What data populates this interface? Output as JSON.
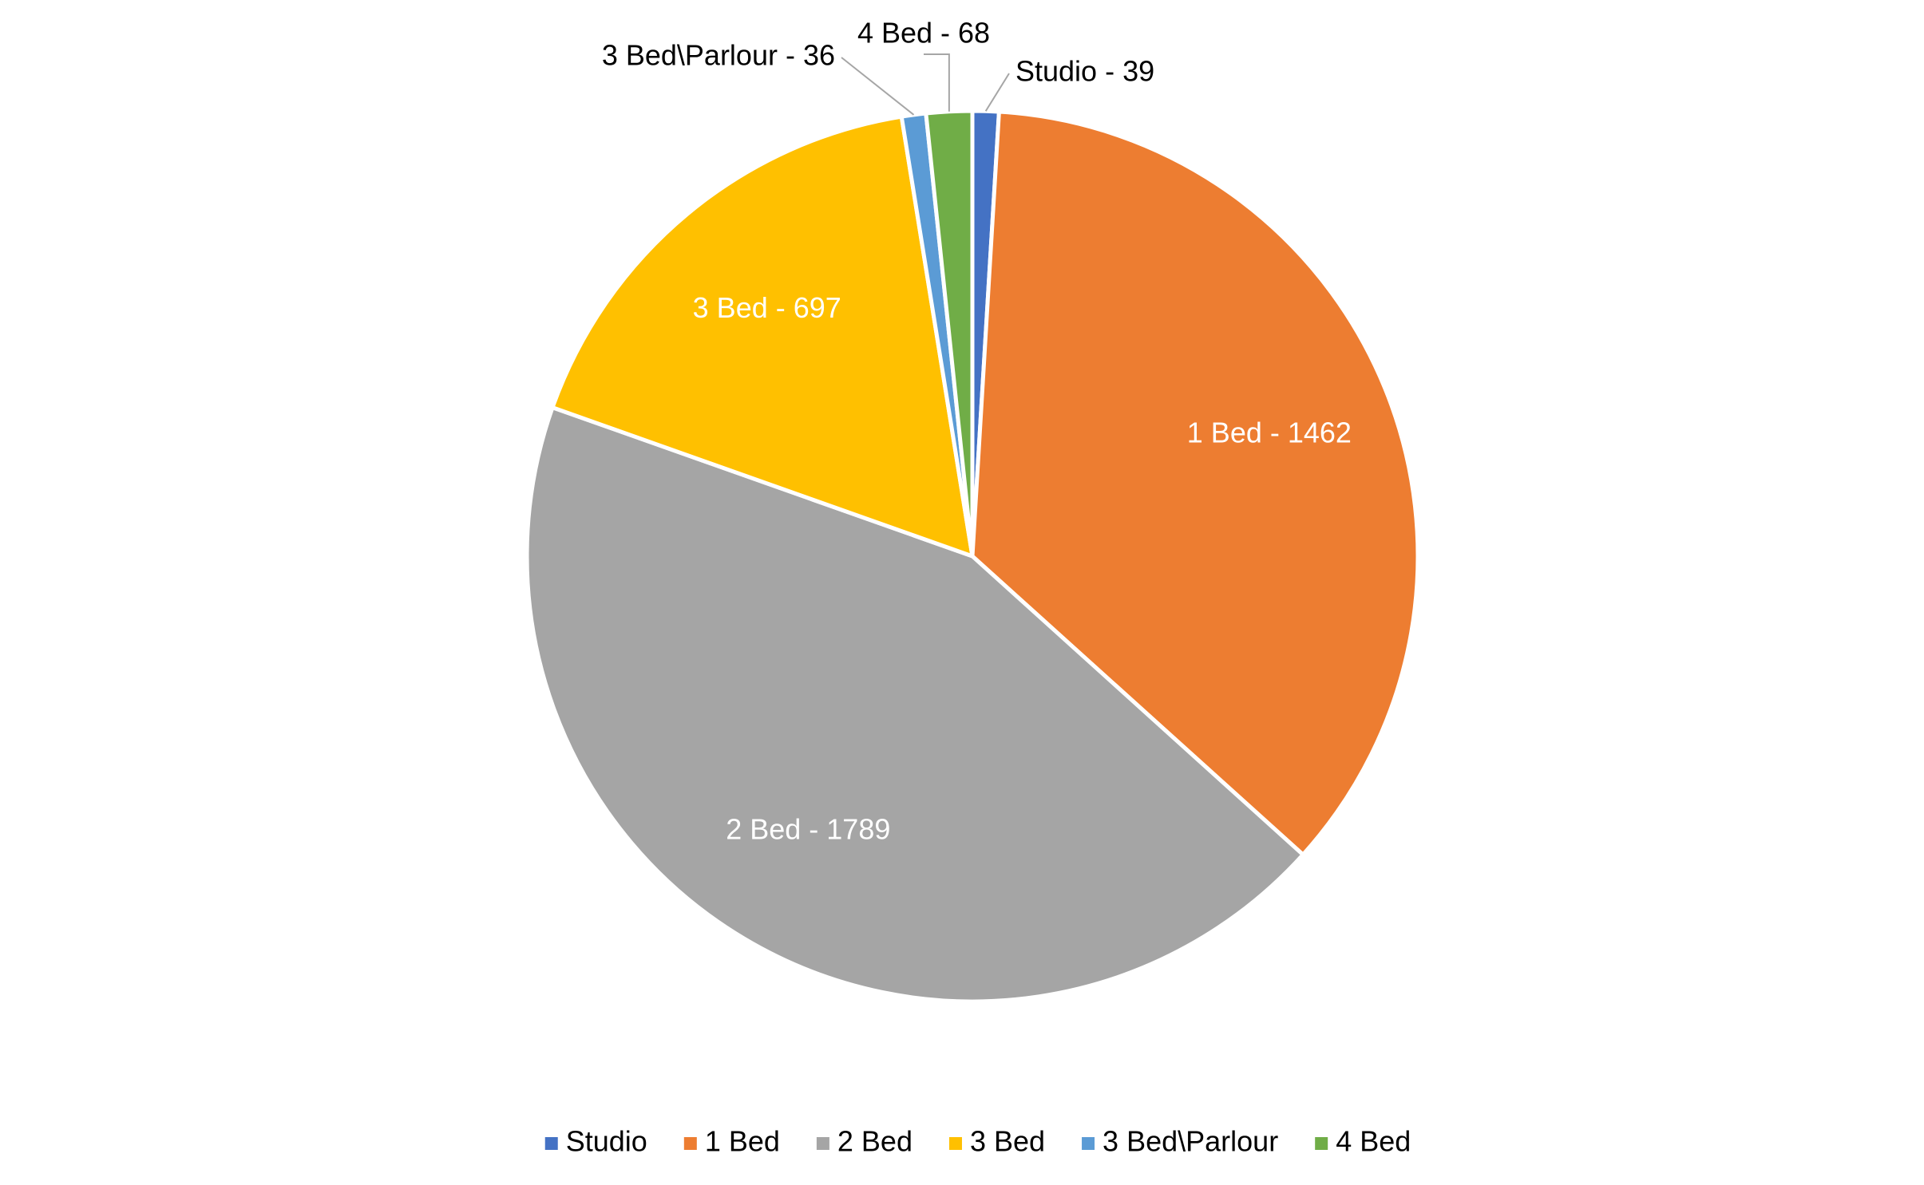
{
  "chart_data": {
    "type": "pie",
    "categories": [
      "Studio",
      "1 Bed",
      "2 Bed",
      "3 Bed",
      "3 Bed\\Parlour",
      "4 Bed"
    ],
    "values": [
      39,
      1462,
      1789,
      697,
      36,
      68
    ],
    "value_labels": [
      "Studio - 39",
      "1 Bed - 1462",
      "2 Bed - 1789",
      "3 Bed - 697",
      "3 Bed\\Parlour - 36",
      "4 Bed - 68"
    ],
    "colors": [
      "#4472c4",
      "#ed7d31",
      "#a5a5a5",
      "#ffc000",
      "#5b9bd5",
      "#70ad47"
    ],
    "legend": "bottom"
  }
}
